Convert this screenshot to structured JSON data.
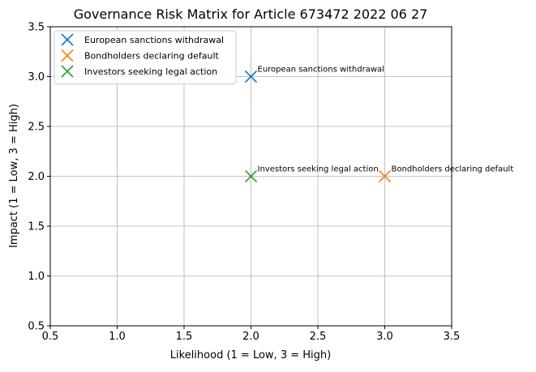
{
  "chart_data": {
    "type": "scatter",
    "title": "Governance Risk Matrix for Article 673472 2022 06 27",
    "xlabel": "Likelihood (1 = Low, 3 = High)",
    "ylabel": "Impact (1 = Low, 3 = High)",
    "xlim": [
      0.5,
      3.5
    ],
    "ylim": [
      0.5,
      3.5
    ],
    "xticks": [
      "0.5",
      "1.0",
      "1.5",
      "2.0",
      "2.5",
      "3.0",
      "3.5"
    ],
    "yticks": [
      "0.5",
      "1.0",
      "1.5",
      "2.0",
      "2.5",
      "3.0",
      "3.5"
    ],
    "grid": true,
    "legend_position": "top-left",
    "marker": "x",
    "series": [
      {
        "name": "European sanctions withdrawal",
        "x": [
          2
        ],
        "y": [
          3
        ],
        "color": "#1f77b4",
        "annotation": "European sanctions withdrawal"
      },
      {
        "name": "Bondholders declaring default",
        "x": [
          3
        ],
        "y": [
          2
        ],
        "color": "#ff7f0e",
        "annotation": "Bondholders declaring default"
      },
      {
        "name": "Investors seeking legal action",
        "x": [
          2
        ],
        "y": [
          2
        ],
        "color": "#2ca02c",
        "annotation": "Investors seeking legal action"
      }
    ]
  }
}
